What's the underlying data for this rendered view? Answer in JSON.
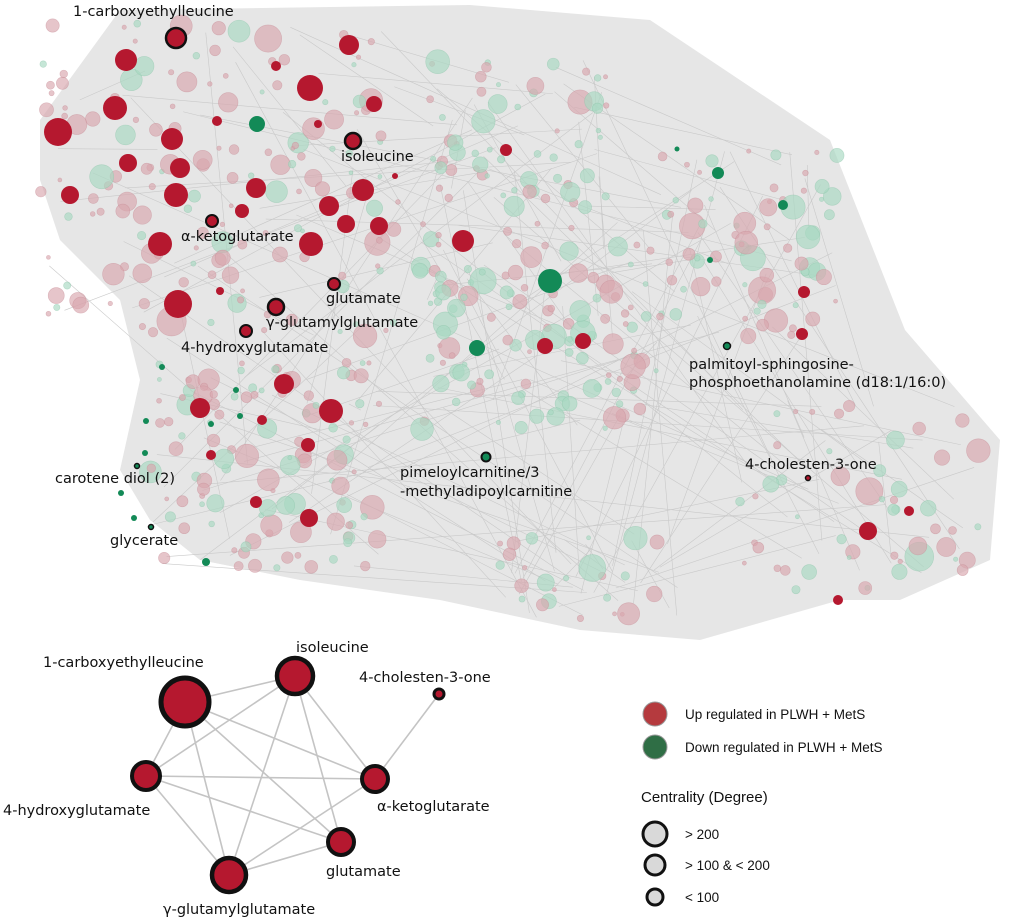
{
  "network": {
    "labels": {
      "carboxyethylleucine": "1-carboxyethylleucine",
      "isoleucine": "isoleucine",
      "ketoglutarate": "α-ketoglutarate",
      "glutamate": "glutamate",
      "glutamylglutamate": "γ-glutamylglutamate",
      "hydroxyglutamate": "4-hydroxyglutamate",
      "palmitoyl_line1": "palmitoyl-sphingosine-",
      "palmitoyl_line2": "phosphoethanolamine (d18:1/16:0)",
      "cholestenone": "4-cholesten-3-one",
      "pimeloyl_line1": "pimeloylcarnitine/3",
      "pimeloyl_line2": "-methyladipoylcarnitine",
      "carotene": "carotene diol (2)",
      "glycerate": "glycerate"
    }
  },
  "subnetwork": {
    "labels": {
      "carboxyethylleucine": "1-carboxyethylleucine",
      "isoleucine": "isoleucine",
      "cholestenone": "4-cholesten-3-one",
      "hydroxyglutamate": "4-hydroxyglutamate",
      "ketoglutarate": "α-ketoglutarate",
      "glutamate": "glutamate",
      "glutamylglutamate": "γ-glutamylglutamate"
    }
  },
  "legend": {
    "up_label": "Up regulated in PLWH + MetS",
    "down_label": "Down regulated in PLWH + MetS",
    "centrality_title": "Centrality (Degree)",
    "size_high": "> 200",
    "size_mid": "> 100 &  < 200",
    "size_low": "< 100"
  },
  "colors": {
    "up": "#b5182f",
    "down": "#138a57",
    "up_faded": "#d9a6ae",
    "down_faded": "#a8d8c2",
    "edge": "#c9c9c9"
  }
}
